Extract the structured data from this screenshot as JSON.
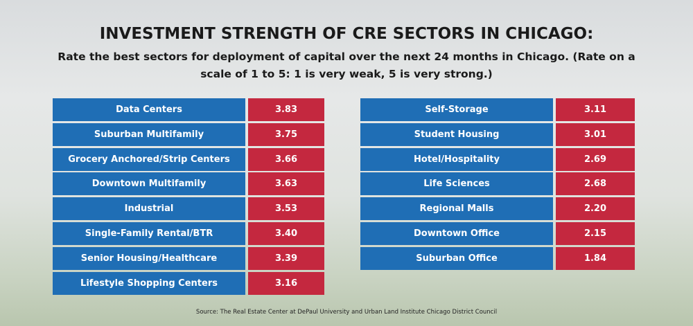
{
  "header": {
    "title": "INVESTMENT STRENGTH OF CRE SECTORS IN CHICAGO:",
    "subtitle": "Rate the best sectors for deployment of capital over the next 24 months in Chicago.  (Rate on a scale of 1 to 5: 1 is very weak, 5 is very strong.)"
  },
  "tables": [
    {
      "rows": [
        [
          "Data Centers",
          "3.83"
        ],
        [
          "Suburban Multifamily",
          "3.75"
        ],
        [
          "Grocery Anchored/Strip Centers",
          "3.66"
        ],
        [
          "Downtown Multifamily",
          "3.63"
        ],
        [
          "Industrial",
          "3.53"
        ],
        [
          "Single-Family Rental/BTR",
          "3.40"
        ],
        [
          "Senior Housing/Healthcare",
          "3.39"
        ],
        [
          "Lifestyle Shopping Centers",
          "3.16"
        ]
      ]
    },
    {
      "rows": [
        [
          "Self-Storage",
          "3.11"
        ],
        [
          "Student Housing",
          "3.01"
        ],
        [
          "Hotel/Hospitality",
          "2.69"
        ],
        [
          "Life Sciences",
          "2.68"
        ],
        [
          "Regional Malls",
          "2.20"
        ],
        [
          "Downtown Office",
          "2.15"
        ],
        [
          "Suburban Office",
          "1.84"
        ]
      ]
    }
  ],
  "footer": {
    "source": "Source:  The Real Estate Center at DePaul University and Urban Land Institute Chicago District Council"
  }
}
